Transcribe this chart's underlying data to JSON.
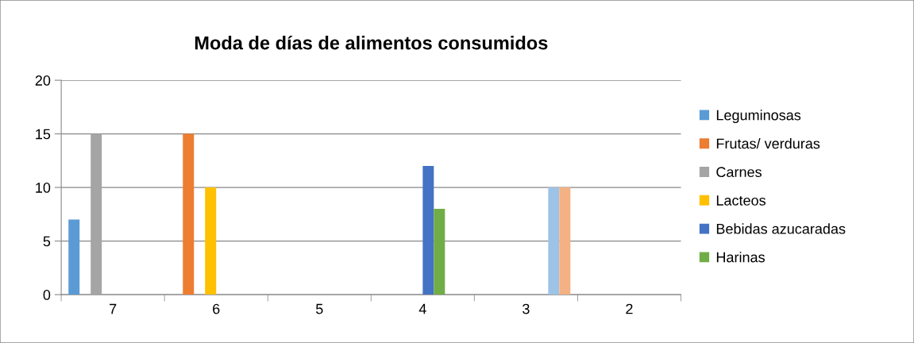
{
  "chart_data": {
    "type": "bar",
    "title": "Moda de días de alimentos consumidos",
    "categories": [
      "7",
      "6",
      "5",
      "4",
      "3",
      "2"
    ],
    "series": [
      {
        "name": "Leguminosas",
        "color": "#5b9bd5",
        "values": [
          7,
          null,
          null,
          null,
          null,
          null
        ]
      },
      {
        "name": "Frutas/ verduras",
        "color": "#ed7d31",
        "values": [
          null,
          15,
          null,
          null,
          null,
          null
        ]
      },
      {
        "name": "Carnes",
        "color": "#a5a5a5",
        "values": [
          15,
          null,
          null,
          null,
          null,
          null
        ]
      },
      {
        "name": "Lacteos",
        "color": "#ffc000",
        "values": [
          null,
          10,
          null,
          null,
          null,
          null
        ]
      },
      {
        "name": "Bebidas azucaradas",
        "color": "#4472c4",
        "values": [
          null,
          null,
          null,
          12,
          null,
          null
        ]
      },
      {
        "name": "Harinas",
        "color": "#70ad47",
        "values": [
          null,
          null,
          null,
          8,
          null,
          null
        ]
      },
      {
        "color": "#9dc3e6",
        "values": [
          null,
          null,
          null,
          null,
          10,
          null
        ]
      },
      {
        "color": "#f4b183",
        "values": [
          null,
          null,
          null,
          null,
          10,
          null
        ]
      }
    ],
    "ylim": [
      0,
      20
    ],
    "yticks": [
      0,
      5,
      10,
      15,
      20
    ],
    "grid": "y",
    "legend": "right"
  }
}
